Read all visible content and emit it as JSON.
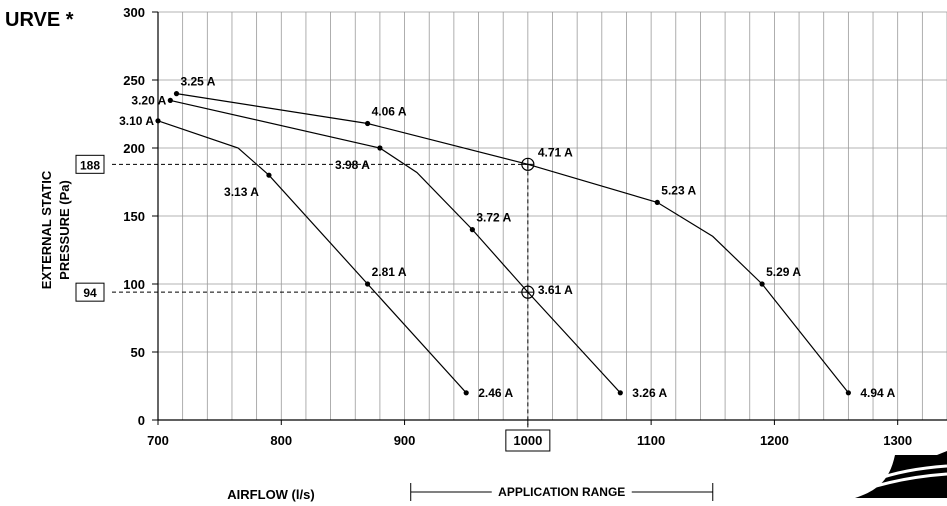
{
  "chart_data": {
    "type": "line",
    "title": "URVE *",
    "xlabel": "AIRFLOW (l/s)",
    "ylabel_line1": "EXTERNAL STATIC",
    "ylabel_line2": "PRESSURE (Pa)",
    "xlim": [
      700,
      1340
    ],
    "ylim": [
      0,
      300
    ],
    "x_ticks": [
      "700",
      "800",
      "900",
      "1000",
      "1100",
      "1200",
      "1300"
    ],
    "y_ticks": [
      "0",
      "50",
      "100",
      "150",
      "200",
      "250",
      "300"
    ],
    "grid": true,
    "x_highlight": {
      "value": 1000,
      "label": "1000"
    },
    "reference_points": [
      {
        "y": 188,
        "label": "188",
        "x": 1000,
        "current": "4.71 A"
      },
      {
        "y": 94,
        "label": "94",
        "x": 1000,
        "current": "3.61 A"
      }
    ],
    "application_range": {
      "label": "APPLICATION RANGE",
      "from": 905,
      "to": 1150
    },
    "series": [
      {
        "points": [
          [
            700,
            220
          ],
          [
            765,
            200
          ],
          [
            790,
            180
          ],
          [
            870,
            100
          ],
          [
            950,
            20
          ]
        ],
        "labels": [
          {
            "x": 700,
            "y": 220,
            "text": "3.10 A",
            "pos": "left"
          },
          {
            "x": 790,
            "y": 180,
            "text": "3.13 A",
            "pos": "below-left"
          },
          {
            "x": 870,
            "y": 100,
            "text": "2.81 A",
            "pos": "above-right"
          },
          {
            "x": 950,
            "y": 20,
            "text": "2.46 A",
            "pos": "right"
          }
        ]
      },
      {
        "points": [
          [
            710,
            235
          ],
          [
            880,
            200
          ],
          [
            910,
            182
          ],
          [
            955,
            140
          ],
          [
            1000,
            94
          ],
          [
            1075,
            20
          ]
        ],
        "labels": [
          {
            "x": 710,
            "y": 235,
            "text": "3.20 A",
            "pos": "left"
          },
          {
            "x": 880,
            "y": 200,
            "text": "3.98 A",
            "pos": "below-left"
          },
          {
            "x": 955,
            "y": 140,
            "text": "3.72 A",
            "pos": "above-right"
          },
          {
            "x": 1075,
            "y": 20,
            "text": "3.26 A",
            "pos": "right"
          }
        ]
      },
      {
        "points": [
          [
            715,
            240
          ],
          [
            870,
            218
          ],
          [
            1000,
            188
          ],
          [
            1105,
            160
          ],
          [
            1150,
            135
          ],
          [
            1190,
            100
          ],
          [
            1260,
            20
          ]
        ],
        "labels": [
          {
            "x": 715,
            "y": 240,
            "text": "3.25 A",
            "pos": "above-right"
          },
          {
            "x": 870,
            "y": 218,
            "text": "4.06 A",
            "pos": "above-right"
          },
          {
            "x": 1105,
            "y": 160,
            "text": "5.23 A",
            "pos": "above-right"
          },
          {
            "x": 1190,
            "y": 100,
            "text": "5.29 A",
            "pos": "above-right"
          },
          {
            "x": 1260,
            "y": 20,
            "text": "4.94 A",
            "pos": "right"
          }
        ]
      }
    ]
  }
}
